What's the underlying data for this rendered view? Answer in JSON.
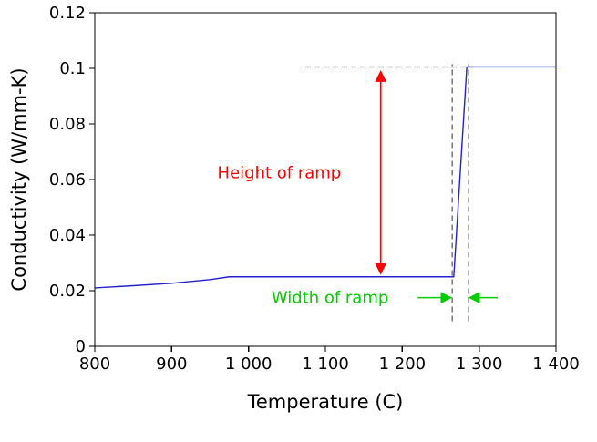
{
  "chart_data": {
    "type": "line",
    "title": "",
    "xlabel": "Temperature (C)",
    "ylabel": "Conductivity (W/mm-K)",
    "xlim": [
      800,
      1400
    ],
    "ylim": [
      0,
      0.12
    ],
    "grid": false,
    "legend": "none",
    "xticks": [
      800,
      900,
      1000,
      1100,
      1200,
      1300,
      1400
    ],
    "xtick_labels": [
      "800",
      "900",
      "1 000",
      "1 100",
      "1 200",
      "1 300",
      "1 400"
    ],
    "yticks": [
      0,
      0.02,
      0.04,
      0.06,
      0.08,
      0.1,
      0.12
    ],
    "ytick_labels": [
      "0",
      "0.02",
      "0.04",
      "0.06",
      "0.08",
      "0.1",
      "0.12"
    ],
    "series": [
      {
        "name": "conductivity-curve",
        "color": "#2222cc",
        "points": [
          [
            800,
            0.021
          ],
          [
            850,
            0.0218
          ],
          [
            900,
            0.0227
          ],
          [
            950,
            0.024
          ],
          [
            975,
            0.025
          ],
          [
            1267,
            0.025
          ],
          [
            1284,
            0.1005
          ],
          [
            1400,
            0.1005
          ]
        ]
      }
    ],
    "annotations": {
      "dashed_color": "#555555",
      "top_dash": {
        "y": 0.1005,
        "x1": 1074,
        "x2": 1292
      },
      "vertical_dashes": {
        "x": [
          1265,
          1286
        ],
        "y1": 0.009,
        "y2": 0.1015
      },
      "height_arrow": {
        "x": 1172,
        "y1": 0.0265,
        "y2": 0.0985,
        "color": "#ff0000"
      },
      "height_label": {
        "text": "Height of ramp",
        "x": 1040,
        "y": 0.0625,
        "color": "#ff0000"
      },
      "width_label": {
        "text": "Width of ramp",
        "x": 1106,
        "y": 0.0175,
        "color": "#00cc00"
      },
      "width_arrow_color": "#00cc00",
      "width_arrows": [
        {
          "x1": 1220,
          "x2": 1262,
          "y": 0.0175
        },
        {
          "x1": 1324,
          "x2": 1289,
          "y": 0.0175
        }
      ]
    }
  }
}
